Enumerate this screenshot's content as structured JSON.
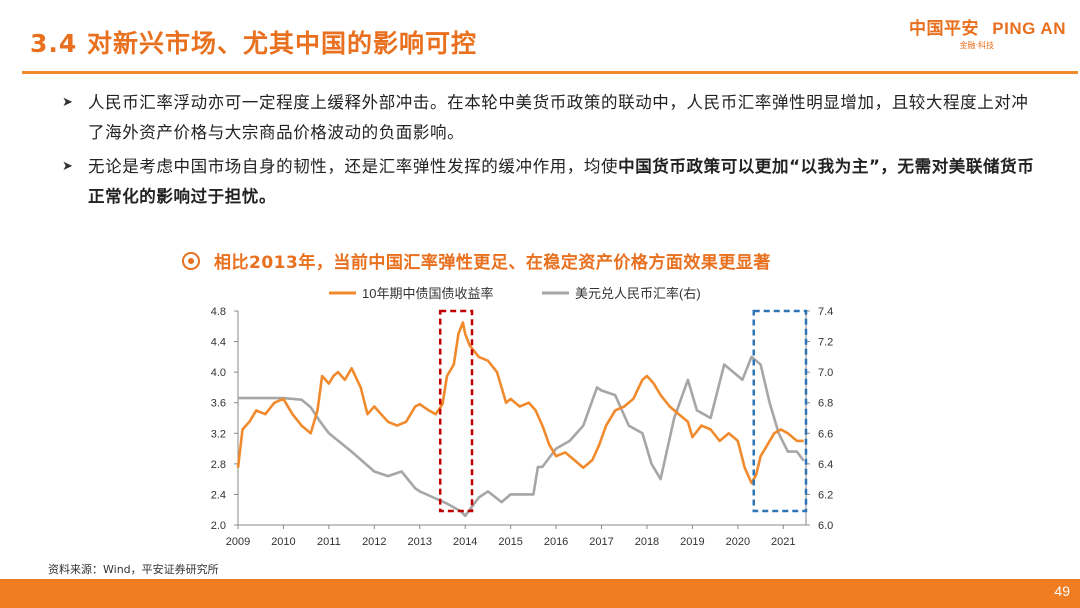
{
  "header": {
    "title": "3.4 对新兴市场、尤其中国的影响可控",
    "logo_cn": "中国平安",
    "logo_en": "PING AN",
    "logo_sub": "金融·科技"
  },
  "bullets": [
    {
      "text": "人民币汇率浮动亦可一定程度上缓释外部冲击。在本轮中美货币政策的联动中，人民币汇率弹性明显增加，且较大程度上对冲了海外资产价格与大宗商品价格波动的负面影响。"
    },
    {
      "text_pre": "无论是考虑中国市场自身的韧性，还是汇率弹性发挥的缓冲作用，均使",
      "text_bold": "中国货币政策可以更加“以我为主”，无需对美联储货币正常化的影响过于担忧。"
    }
  ],
  "chart_title": "相比2013年，当前中国汇率弹性更足、在稳定资产价格方面效果更显著",
  "source": "资料来源：Wind，平安证券研究所",
  "page_number": "49",
  "colors": {
    "accent": "#e8701e",
    "series_bond": "#f08a2c",
    "series_fx": "#a6a6a6",
    "box_red": "#c00000",
    "box_blue": "#2e75b6"
  },
  "chart_data": {
    "type": "line",
    "x_ticks": [
      "2009",
      "2010",
      "2011",
      "2012",
      "2013",
      "2014",
      "2015",
      "2016",
      "2017",
      "2018",
      "2019",
      "2020",
      "2021"
    ],
    "xlim": [
      2009,
      2021.5
    ],
    "y_left_ticks": [
      "2.0",
      "2.4",
      "2.8",
      "3.2",
      "3.6",
      "4.0",
      "4.4",
      "4.8"
    ],
    "y_right_ticks": [
      "6.0",
      "6.2",
      "6.4",
      "6.6",
      "6.8",
      "7.0",
      "7.2",
      "7.4"
    ],
    "ylim_left": [
      2.0,
      4.8
    ],
    "ylim_right": [
      6.0,
      7.4
    ],
    "grid": false,
    "legend_position": "top",
    "series": [
      {
        "name": "10年期中债国债收益率",
        "axis": "left",
        "x": [
          2009.0,
          2009.1,
          2009.25,
          2009.4,
          2009.6,
          2009.8,
          2010.0,
          2010.2,
          2010.4,
          2010.6,
          2010.75,
          2010.85,
          2011.0,
          2011.1,
          2011.2,
          2011.35,
          2011.5,
          2011.7,
          2011.85,
          2012.0,
          2012.15,
          2012.3,
          2012.5,
          2012.7,
          2012.9,
          2013.0,
          2013.2,
          2013.35,
          2013.5,
          2013.6,
          2013.75,
          2013.85,
          2013.95,
          2014.0,
          2014.1,
          2014.3,
          2014.5,
          2014.7,
          2014.9,
          2015.0,
          2015.2,
          2015.4,
          2015.55,
          2015.7,
          2015.85,
          2016.0,
          2016.2,
          2016.4,
          2016.6,
          2016.8,
          2016.95,
          2017.1,
          2017.3,
          2017.5,
          2017.7,
          2017.9,
          2018.0,
          2018.15,
          2018.3,
          2018.5,
          2018.7,
          2018.9,
          2019.0,
          2019.2,
          2019.4,
          2019.6,
          2019.8,
          2020.0,
          2020.15,
          2020.3,
          2020.4,
          2020.5,
          2020.65,
          2020.8,
          2020.95,
          2021.1,
          2021.3,
          2021.45
        ],
        "values": [
          2.75,
          3.25,
          3.35,
          3.5,
          3.45,
          3.6,
          3.65,
          3.45,
          3.3,
          3.2,
          3.5,
          3.95,
          3.85,
          3.95,
          4.0,
          3.9,
          4.05,
          3.8,
          3.45,
          3.55,
          3.45,
          3.35,
          3.3,
          3.35,
          3.55,
          3.58,
          3.5,
          3.45,
          3.58,
          3.95,
          4.1,
          4.5,
          4.65,
          4.5,
          4.35,
          4.2,
          4.15,
          4.0,
          3.6,
          3.65,
          3.55,
          3.6,
          3.5,
          3.3,
          3.05,
          2.9,
          2.95,
          2.85,
          2.75,
          2.85,
          3.05,
          3.3,
          3.5,
          3.55,
          3.65,
          3.9,
          3.95,
          3.85,
          3.7,
          3.55,
          3.45,
          3.35,
          3.15,
          3.3,
          3.25,
          3.1,
          3.2,
          3.1,
          2.75,
          2.55,
          2.65,
          2.9,
          3.05,
          3.2,
          3.25,
          3.2,
          3.1,
          3.1
        ]
      },
      {
        "name": "美元兑人民币汇率(右)",
        "axis": "right",
        "x": [
          2009.0,
          2009.5,
          2010.0,
          2010.4,
          2010.6,
          2010.8,
          2011.0,
          2011.5,
          2012.0,
          2012.3,
          2012.6,
          2012.9,
          2013.0,
          2013.3,
          2013.6,
          2013.9,
          2014.0,
          2014.1,
          2014.3,
          2014.5,
          2014.8,
          2015.0,
          2015.5,
          2015.6,
          2015.7,
          2016.0,
          2016.3,
          2016.6,
          2016.9,
          2017.0,
          2017.3,
          2017.6,
          2017.9,
          2018.1,
          2018.3,
          2018.6,
          2018.9,
          2019.1,
          2019.4,
          2019.7,
          2019.9,
          2020.1,
          2020.3,
          2020.5,
          2020.7,
          2020.9,
          2021.1,
          2021.3,
          2021.45
        ],
        "values": [
          6.83,
          6.83,
          6.83,
          6.82,
          6.77,
          6.68,
          6.6,
          6.48,
          6.35,
          6.32,
          6.35,
          6.24,
          6.22,
          6.18,
          6.14,
          6.09,
          6.06,
          6.1,
          6.18,
          6.22,
          6.15,
          6.2,
          6.2,
          6.38,
          6.38,
          6.5,
          6.55,
          6.65,
          6.9,
          6.88,
          6.85,
          6.65,
          6.6,
          6.4,
          6.3,
          6.7,
          6.95,
          6.75,
          6.7,
          7.05,
          7.0,
          6.95,
          7.1,
          7.05,
          6.8,
          6.6,
          6.48,
          6.48,
          6.42
        ]
      }
    ],
    "highlight_boxes": [
      {
        "color": "red",
        "x_range": [
          2013.45,
          2014.15
        ]
      },
      {
        "color": "blue",
        "x_range": [
          2020.35,
          2021.5
        ]
      }
    ]
  }
}
